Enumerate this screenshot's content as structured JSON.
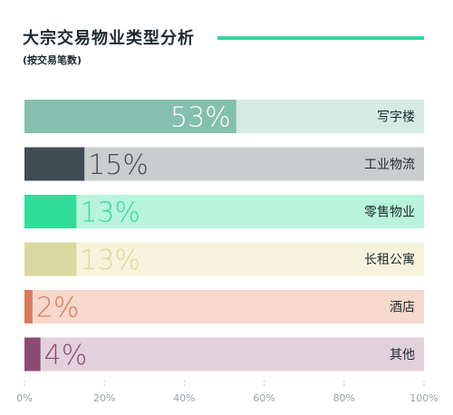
{
  "title": "大宗交易物业类型分析",
  "subtitle": "(按交易笔数)",
  "chart_data": {
    "type": "bar",
    "orientation": "horizontal",
    "categories": [
      "写字楼",
      "工业物流",
      "零售物业",
      "长租公寓",
      "酒店",
      "其他"
    ],
    "values": [
      53,
      15,
      13,
      13,
      2,
      4
    ],
    "value_labels": [
      "53%",
      "15%",
      "13%",
      "13%",
      "2%",
      "4%"
    ],
    "colors": [
      "#85bfae",
      "#404c54",
      "#2fde99",
      "#d9d99f",
      "#d97a5a",
      "#8a4a74"
    ],
    "track_colors": [
      "#d5ebe4",
      "#c9cdcd",
      "#b8f3dc",
      "#f5f3db",
      "#f6d8cc",
      "#e2d0db"
    ],
    "label_colors": [
      "#ffffff",
      "#404c54",
      "#2fde99",
      "#d9d99f",
      "#d97a5a",
      "#8a4a74"
    ],
    "xlim": [
      0,
      100
    ],
    "x_ticks": [
      "0%",
      "20%",
      "40%",
      "60%",
      "80%",
      "100%"
    ],
    "grid": false,
    "legend": "none"
  }
}
